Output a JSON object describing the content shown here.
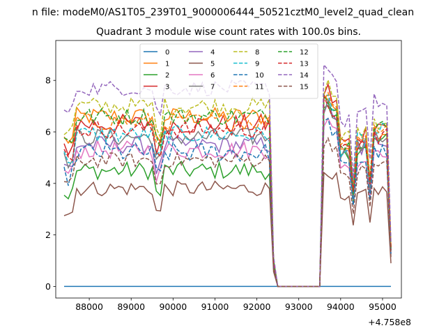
{
  "header": {
    "suptitle": "n file: modeM0/AS1T05_239T01_9000006444_50521cztM0_level2_quad_clean"
  },
  "chart_data": {
    "type": "line",
    "title": "Quadrant 3 module wise count rates with 100.0s bins.",
    "xlabel": "",
    "ylabel": "",
    "x_offset_label": "+4.758e8",
    "xlim": [
      87200,
      95450
    ],
    "ylim": [
      -0.45,
      9.55
    ],
    "xticks": [
      88000,
      89000,
      90000,
      91000,
      92000,
      93000,
      94000,
      95000
    ],
    "xtick_labels": [
      "88000",
      "89000",
      "90000",
      "91000",
      "92000",
      "93000",
      "94000",
      "95000"
    ],
    "yticks": [
      0,
      2,
      4,
      6,
      8
    ],
    "ytick_labels": [
      "0",
      "2",
      "4",
      "6",
      "8"
    ],
    "grid": false,
    "legend_position": "top-center",
    "legend_columns": 4,
    "segments": {
      "x_start": 87400,
      "x_gap_start": 92500,
      "x_gap_end": 93500,
      "x_resume": 93600,
      "x_end": 95200,
      "step": 100
    },
    "series": [
      {
        "name": "0",
        "color": "#1f77b4",
        "dashed": false,
        "base": 0.0,
        "noise": 0.0,
        "post": 0.0
      },
      {
        "name": "1",
        "color": "#ff7f0e",
        "dashed": false,
        "base": 6.6,
        "noise": 0.35,
        "post": 7.3
      },
      {
        "name": "2",
        "color": "#2ca02c",
        "dashed": false,
        "base": 4.5,
        "noise": 0.35,
        "post": 6.8
      },
      {
        "name": "3",
        "color": "#d62728",
        "dashed": false,
        "base": 6.3,
        "noise": 0.4,
        "post": 7.6
      },
      {
        "name": "4",
        "color": "#9467bd",
        "dashed": false,
        "base": 5.5,
        "noise": 0.35,
        "post": 6.9
      },
      {
        "name": "5",
        "color": "#8c564b",
        "dashed": false,
        "base": 3.8,
        "noise": 0.3,
        "post": 4.5
      },
      {
        "name": "6",
        "color": "#e377c2",
        "dashed": false,
        "base": 5.3,
        "noise": 0.35,
        "post": 6.4
      },
      {
        "name": "7",
        "color": "#7f7f7f",
        "dashed": false,
        "base": 5.8,
        "noise": 0.35,
        "post": 7.0
      },
      {
        "name": "8",
        "color": "#bcbd22",
        "dashed": true,
        "base": 7.0,
        "noise": 0.35,
        "post": 7.8
      },
      {
        "name": "9",
        "color": "#17becf",
        "dashed": true,
        "base": 5.9,
        "noise": 0.35,
        "post": 7.2
      },
      {
        "name": "10",
        "color": "#1f77b4",
        "dashed": true,
        "base": 5.2,
        "noise": 0.4,
        "post": 6.3
      },
      {
        "name": "11",
        "color": "#ff7f0e",
        "dashed": true,
        "base": 6.4,
        "noise": 0.35,
        "post": 7.5
      },
      {
        "name": "12",
        "color": "#2ca02c",
        "dashed": true,
        "base": 6.6,
        "noise": 0.35,
        "post": 7.4
      },
      {
        "name": "13",
        "color": "#d62728",
        "dashed": true,
        "base": 6.1,
        "noise": 0.35,
        "post": 7.1
      },
      {
        "name": "14",
        "color": "#9467bd",
        "dashed": true,
        "base": 7.7,
        "noise": 0.3,
        "post": 8.6
      },
      {
        "name": "15",
        "color": "#8c564b",
        "dashed": true,
        "base": 4.9,
        "noise": 0.3,
        "post": 5.7
      }
    ]
  }
}
